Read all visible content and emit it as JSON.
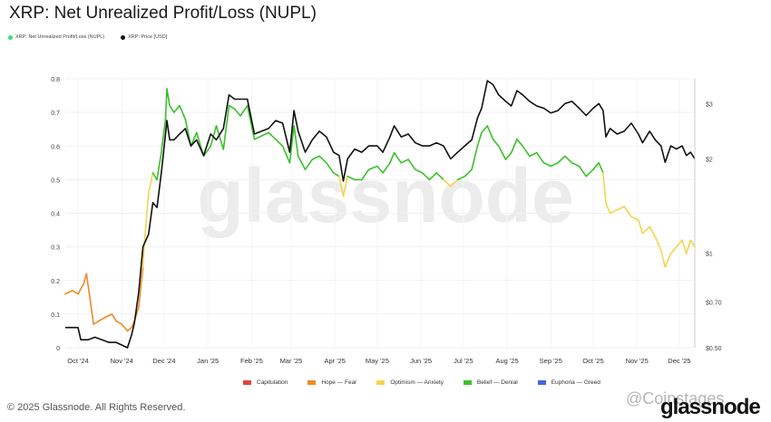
{
  "header": {
    "title": "XRP: Net Unrealized Profit/Loss (NUPL)"
  },
  "legend_top": [
    {
      "label": "XRP: Net Unrealized Profit/Loss (NUPL)",
      "color": "#3fd97a"
    },
    {
      "label": "XRP: Price [USD]",
      "color": "#111111"
    }
  ],
  "legend_bottom": [
    {
      "label": "Capitulation",
      "color": "#e5443a"
    },
    {
      "label": "Hope — Fear",
      "color": "#f08a24"
    },
    {
      "label": "Optimism — Anxiety",
      "color": "#f4d54b"
    },
    {
      "label": "Belief — Denial",
      "color": "#3ac12a"
    },
    {
      "label": "Euphoria — Greed",
      "color": "#4a63e0"
    }
  ],
  "footer": {
    "copyright": "© 2025 Glassnode. All Rights Reserved.",
    "logo": "glassnode",
    "watermark_logo": "@Coinstages",
    "watermark": "glassnode"
  },
  "chart_data": {
    "type": "line",
    "title": "XRP: Net Unrealized Profit/Loss (NUPL)",
    "x_ticks": [
      "Oct '24",
      "Nov '24",
      "Dec '24",
      "Jan '25",
      "Feb '25",
      "Mar '25",
      "Apr '25",
      "May '25",
      "Jun '25",
      "Jul '25",
      "Aug '25",
      "Sep '25",
      "Oct '25",
      "Nov '25",
      "Dec '25"
    ],
    "x_range": [
      "2024-09-22",
      "2025-12-12"
    ],
    "y_left": {
      "ticks": [
        "0",
        "0.1",
        "0.2",
        "0.3",
        "0.4",
        "0.5",
        "0.6",
        "0.7",
        "0.8"
      ],
      "min": 0,
      "max": 0.8
    },
    "y_right": {
      "ticks": [
        "$0.50",
        "$0.70",
        "$1",
        "$2",
        "$3"
      ],
      "values": [
        0.5,
        0.7,
        1,
        2,
        3
      ],
      "scale": "log",
      "min": 0.5,
      "max": 3.6
    },
    "grid": true,
    "legend_placement": "top-left",
    "zones": [
      {
        "name": "Capitulation",
        "range": [
          -1,
          0
        ],
        "color": "#e5443a"
      },
      {
        "name": "Hope — Fear",
        "range": [
          0,
          0.25
        ],
        "color": "#f08a24"
      },
      {
        "name": "Optimism — Anxiety",
        "range": [
          0.25,
          0.5
        ],
        "color": "#f4d54b"
      },
      {
        "name": "Belief — Denial",
        "range": [
          0.5,
          0.75
        ],
        "color": "#3ac12a"
      },
      {
        "name": "Euphoria — Greed",
        "range": [
          0.75,
          1
        ],
        "color": "#4a63e0"
      }
    ],
    "series": [
      {
        "name": "XRP: Net Unrealized Profit/Loss (NUPL)",
        "axis": "left",
        "points": [
          [
            "2024-09-22",
            0.16
          ],
          [
            "2024-09-27",
            0.17
          ],
          [
            "2024-10-01",
            0.16
          ],
          [
            "2024-10-05",
            0.19
          ],
          [
            "2024-10-07",
            0.22
          ],
          [
            "2024-10-09",
            0.16
          ],
          [
            "2024-10-12",
            0.07
          ],
          [
            "2024-10-16",
            0.08
          ],
          [
            "2024-10-20",
            0.09
          ],
          [
            "2024-10-25",
            0.1
          ],
          [
            "2024-10-28",
            0.08
          ],
          [
            "2024-11-01",
            0.07
          ],
          [
            "2024-11-05",
            0.05
          ],
          [
            "2024-11-08",
            0.06
          ],
          [
            "2024-11-10",
            0.08
          ],
          [
            "2024-11-13",
            0.12
          ],
          [
            "2024-11-16",
            0.24
          ],
          [
            "2024-11-17",
            0.31
          ],
          [
            "2024-11-20",
            0.46
          ],
          [
            "2024-11-23",
            0.52
          ],
          [
            "2024-11-26",
            0.5
          ],
          [
            "2024-11-29",
            0.58
          ],
          [
            "2024-12-02",
            0.68
          ],
          [
            "2024-12-03",
            0.77
          ],
          [
            "2024-12-05",
            0.72
          ],
          [
            "2024-12-08",
            0.7
          ],
          [
            "2024-12-12",
            0.72
          ],
          [
            "2024-12-16",
            0.68
          ],
          [
            "2024-12-20",
            0.6
          ],
          [
            "2024-12-24",
            0.64
          ],
          [
            "2024-12-29",
            0.57
          ],
          [
            "2025-01-03",
            0.6
          ],
          [
            "2025-01-07",
            0.66
          ],
          [
            "2025-01-12",
            0.59
          ],
          [
            "2025-01-16",
            0.72
          ],
          [
            "2025-01-20",
            0.71
          ],
          [
            "2025-01-24",
            0.69
          ],
          [
            "2025-01-29",
            0.72
          ],
          [
            "2025-02-03",
            0.62
          ],
          [
            "2025-02-08",
            0.63
          ],
          [
            "2025-02-13",
            0.64
          ],
          [
            "2025-02-18",
            0.62
          ],
          [
            "2025-02-23",
            0.6
          ],
          [
            "2025-02-28",
            0.55
          ],
          [
            "2025-03-03",
            0.66
          ],
          [
            "2025-03-06",
            0.57
          ],
          [
            "2025-03-11",
            0.53
          ],
          [
            "2025-03-16",
            0.56
          ],
          [
            "2025-03-21",
            0.57
          ],
          [
            "2025-03-26",
            0.55
          ],
          [
            "2025-03-31",
            0.52
          ],
          [
            "2025-04-04",
            0.51
          ],
          [
            "2025-04-07",
            0.45
          ],
          [
            "2025-04-10",
            0.51
          ],
          [
            "2025-04-15",
            0.5
          ],
          [
            "2025-04-20",
            0.5
          ],
          [
            "2025-04-25",
            0.53
          ],
          [
            "2025-05-01",
            0.54
          ],
          [
            "2025-05-05",
            0.52
          ],
          [
            "2025-05-10",
            0.55
          ],
          [
            "2025-05-13",
            0.58
          ],
          [
            "2025-05-18",
            0.55
          ],
          [
            "2025-05-23",
            0.56
          ],
          [
            "2025-05-28",
            0.53
          ],
          [
            "2025-06-02",
            0.52
          ],
          [
            "2025-06-07",
            0.5
          ],
          [
            "2025-06-12",
            0.52
          ],
          [
            "2025-06-17",
            0.5
          ],
          [
            "2025-06-22",
            0.48
          ],
          [
            "2025-06-27",
            0.5
          ],
          [
            "2025-07-02",
            0.51
          ],
          [
            "2025-07-07",
            0.53
          ],
          [
            "2025-07-11",
            0.6
          ],
          [
            "2025-07-14",
            0.64
          ],
          [
            "2025-07-18",
            0.66
          ],
          [
            "2025-07-22",
            0.62
          ],
          [
            "2025-07-26",
            0.6
          ],
          [
            "2025-07-31",
            0.56
          ],
          [
            "2025-08-04",
            0.58
          ],
          [
            "2025-08-08",
            0.62
          ],
          [
            "2025-08-12",
            0.6
          ],
          [
            "2025-08-17",
            0.57
          ],
          [
            "2025-08-22",
            0.58
          ],
          [
            "2025-08-27",
            0.55
          ],
          [
            "2025-09-01",
            0.54
          ],
          [
            "2025-09-06",
            0.55
          ],
          [
            "2025-09-11",
            0.57
          ],
          [
            "2025-09-16",
            0.55
          ],
          [
            "2025-09-21",
            0.54
          ],
          [
            "2025-09-26",
            0.51
          ],
          [
            "2025-10-01",
            0.53
          ],
          [
            "2025-10-05",
            0.55
          ],
          [
            "2025-10-08",
            0.52
          ],
          [
            "2025-10-10",
            0.43
          ],
          [
            "2025-10-13",
            0.4
          ],
          [
            "2025-10-18",
            0.41
          ],
          [
            "2025-10-23",
            0.42
          ],
          [
            "2025-10-28",
            0.39
          ],
          [
            "2025-11-02",
            0.38
          ],
          [
            "2025-11-05",
            0.34
          ],
          [
            "2025-11-10",
            0.36
          ],
          [
            "2025-11-14",
            0.33
          ],
          [
            "2025-11-18",
            0.29
          ],
          [
            "2025-11-21",
            0.24
          ],
          [
            "2025-11-25",
            0.28
          ],
          [
            "2025-11-29",
            0.3
          ],
          [
            "2025-12-03",
            0.32
          ],
          [
            "2025-12-06",
            0.28
          ],
          [
            "2025-12-09",
            0.32
          ],
          [
            "2025-12-12",
            0.3
          ]
        ]
      },
      {
        "name": "XRP: Price [USD]",
        "axis": "right",
        "color": "#111111",
        "points": [
          [
            "2024-09-22",
            0.58
          ],
          [
            "2024-09-27",
            0.58
          ],
          [
            "2024-10-01",
            0.58
          ],
          [
            "2024-10-03",
            0.53
          ],
          [
            "2024-10-08",
            0.53
          ],
          [
            "2024-10-13",
            0.54
          ],
          [
            "2024-10-18",
            0.53
          ],
          [
            "2024-10-23",
            0.52
          ],
          [
            "2024-10-28",
            0.52
          ],
          [
            "2024-11-01",
            0.51
          ],
          [
            "2024-11-05",
            0.5
          ],
          [
            "2024-11-08",
            0.55
          ],
          [
            "2024-11-10",
            0.6
          ],
          [
            "2024-11-13",
            0.75
          ],
          [
            "2024-11-16",
            1.05
          ],
          [
            "2024-11-20",
            1.15
          ],
          [
            "2024-11-23",
            1.45
          ],
          [
            "2024-11-26",
            1.4
          ],
          [
            "2024-11-29",
            1.8
          ],
          [
            "2024-12-02",
            2.4
          ],
          [
            "2024-12-03",
            2.65
          ],
          [
            "2024-12-05",
            2.3
          ],
          [
            "2024-12-08",
            2.3
          ],
          [
            "2024-12-12",
            2.4
          ],
          [
            "2024-12-16",
            2.5
          ],
          [
            "2024-12-20",
            2.2
          ],
          [
            "2024-12-24",
            2.3
          ],
          [
            "2024-12-29",
            2.05
          ],
          [
            "2025-01-03",
            2.4
          ],
          [
            "2025-01-07",
            2.3
          ],
          [
            "2025-01-12",
            2.5
          ],
          [
            "2025-01-16",
            3.2
          ],
          [
            "2025-01-20",
            3.1
          ],
          [
            "2025-01-24",
            3.1
          ],
          [
            "2025-01-29",
            3.1
          ],
          [
            "2025-02-03",
            2.4
          ],
          [
            "2025-02-08",
            2.45
          ],
          [
            "2025-02-13",
            2.5
          ],
          [
            "2025-02-18",
            2.65
          ],
          [
            "2025-02-23",
            2.6
          ],
          [
            "2025-02-28",
            2.1
          ],
          [
            "2025-03-03",
            2.85
          ],
          [
            "2025-03-06",
            2.45
          ],
          [
            "2025-03-11",
            2.1
          ],
          [
            "2025-03-16",
            2.3
          ],
          [
            "2025-03-21",
            2.45
          ],
          [
            "2025-03-26",
            2.35
          ],
          [
            "2025-03-31",
            2.1
          ],
          [
            "2025-04-04",
            2.05
          ],
          [
            "2025-04-07",
            1.7
          ],
          [
            "2025-04-10",
            2.0
          ],
          [
            "2025-04-15",
            2.15
          ],
          [
            "2025-04-20",
            2.1
          ],
          [
            "2025-04-25",
            2.2
          ],
          [
            "2025-05-01",
            2.2
          ],
          [
            "2025-05-05",
            2.1
          ],
          [
            "2025-05-10",
            2.35
          ],
          [
            "2025-05-13",
            2.55
          ],
          [
            "2025-05-18",
            2.35
          ],
          [
            "2025-05-23",
            2.4
          ],
          [
            "2025-05-28",
            2.25
          ],
          [
            "2025-06-02",
            2.2
          ],
          [
            "2025-06-07",
            2.2
          ],
          [
            "2025-06-12",
            2.25
          ],
          [
            "2025-06-17",
            2.2
          ],
          [
            "2025-06-22",
            2.0
          ],
          [
            "2025-06-27",
            2.1
          ],
          [
            "2025-07-02",
            2.2
          ],
          [
            "2025-07-07",
            2.3
          ],
          [
            "2025-07-11",
            2.7
          ],
          [
            "2025-07-14",
            2.9
          ],
          [
            "2025-07-18",
            3.55
          ],
          [
            "2025-07-22",
            3.45
          ],
          [
            "2025-07-26",
            3.2
          ],
          [
            "2025-07-31",
            3.05
          ],
          [
            "2025-08-04",
            2.95
          ],
          [
            "2025-08-08",
            3.3
          ],
          [
            "2025-08-12",
            3.2
          ],
          [
            "2025-08-17",
            3.05
          ],
          [
            "2025-08-22",
            2.95
          ],
          [
            "2025-08-27",
            2.9
          ],
          [
            "2025-09-01",
            2.8
          ],
          [
            "2025-09-06",
            2.85
          ],
          [
            "2025-09-11",
            3.0
          ],
          [
            "2025-09-16",
            3.05
          ],
          [
            "2025-09-21",
            2.9
          ],
          [
            "2025-09-26",
            2.75
          ],
          [
            "2025-10-01",
            2.9
          ],
          [
            "2025-10-05",
            3.0
          ],
          [
            "2025-10-08",
            2.85
          ],
          [
            "2025-10-10",
            2.35
          ],
          [
            "2025-10-13",
            2.5
          ],
          [
            "2025-10-18",
            2.4
          ],
          [
            "2025-10-23",
            2.45
          ],
          [
            "2025-10-28",
            2.6
          ],
          [
            "2025-11-02",
            2.4
          ],
          [
            "2025-11-05",
            2.25
          ],
          [
            "2025-11-10",
            2.45
          ],
          [
            "2025-11-14",
            2.3
          ],
          [
            "2025-11-18",
            2.2
          ],
          [
            "2025-11-21",
            1.95
          ],
          [
            "2025-11-25",
            2.2
          ],
          [
            "2025-11-29",
            2.15
          ],
          [
            "2025-12-03",
            2.2
          ],
          [
            "2025-12-06",
            2.05
          ],
          [
            "2025-12-09",
            2.1
          ],
          [
            "2025-12-12",
            2.0
          ]
        ]
      }
    ]
  }
}
